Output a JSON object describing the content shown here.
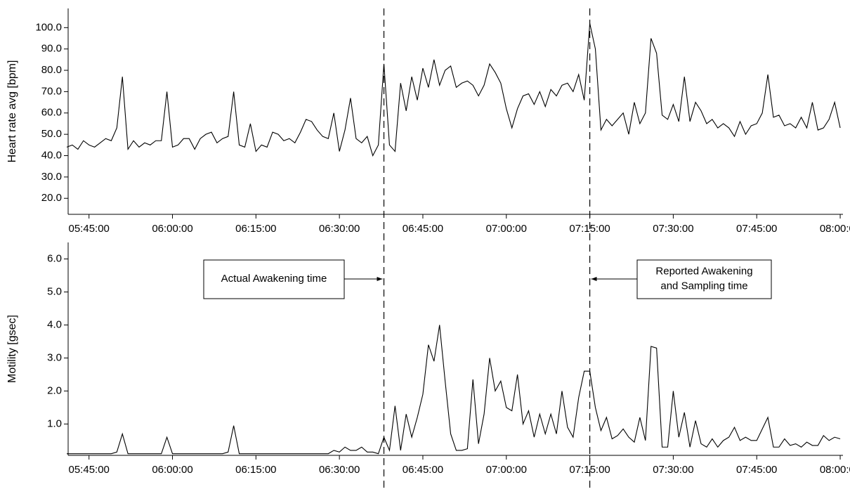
{
  "chart_data": [
    {
      "type": "line",
      "ylabel": "Heart rate avg [bpm]",
      "color": "#000000",
      "x": [
        "05:41:00",
        "05:42:00",
        "05:43:00",
        "05:44:00",
        "05:45:00",
        "05:46:00",
        "05:47:00",
        "05:48:00",
        "05:49:00",
        "05:50:00",
        "05:51:00",
        "05:52:00",
        "05:53:00",
        "05:54:00",
        "05:55:00",
        "05:56:00",
        "05:57:00",
        "05:58:00",
        "05:59:00",
        "06:00:00",
        "06:01:00",
        "06:02:00",
        "06:03:00",
        "06:04:00",
        "06:05:00",
        "06:06:00",
        "06:07:00",
        "06:08:00",
        "06:09:00",
        "06:10:00",
        "06:11:00",
        "06:12:00",
        "06:13:00",
        "06:14:00",
        "06:15:00",
        "06:16:00",
        "06:17:00",
        "06:18:00",
        "06:19:00",
        "06:20:00",
        "06:21:00",
        "06:22:00",
        "06:23:00",
        "06:24:00",
        "06:25:00",
        "06:26:00",
        "06:27:00",
        "06:28:00",
        "06:29:00",
        "06:30:00",
        "06:31:00",
        "06:32:00",
        "06:33:00",
        "06:34:00",
        "06:35:00",
        "06:36:00",
        "06:37:00",
        "06:38:00",
        "06:39:00",
        "06:40:00",
        "06:41:00",
        "06:42:00",
        "06:43:00",
        "06:44:00",
        "06:45:00",
        "06:46:00",
        "06:47:00",
        "06:48:00",
        "06:49:00",
        "06:50:00",
        "06:51:00",
        "06:52:00",
        "06:53:00",
        "06:54:00",
        "06:55:00",
        "06:56:00",
        "06:57:00",
        "06:58:00",
        "06:59:00",
        "07:00:00",
        "07:01:00",
        "07:02:00",
        "07:03:00",
        "07:04:00",
        "07:05:00",
        "07:06:00",
        "07:07:00",
        "07:08:00",
        "07:09:00",
        "07:10:00",
        "07:11:00",
        "07:12:00",
        "07:13:00",
        "07:14:00",
        "07:15:00",
        "07:16:00",
        "07:17:00",
        "07:18:00",
        "07:19:00",
        "07:20:00",
        "07:21:00",
        "07:22:00",
        "07:23:00",
        "07:24:00",
        "07:25:00",
        "07:26:00",
        "07:27:00",
        "07:28:00",
        "07:29:00",
        "07:30:00",
        "07:31:00",
        "07:32:00",
        "07:33:00",
        "07:34:00",
        "07:35:00",
        "07:36:00",
        "07:37:00",
        "07:38:00",
        "07:39:00",
        "07:40:00",
        "07:41:00",
        "07:42:00",
        "07:43:00",
        "07:44:00",
        "07:45:00",
        "07:46:00",
        "07:47:00",
        "07:48:00",
        "07:49:00",
        "07:50:00",
        "07:51:00",
        "07:52:00",
        "07:53:00",
        "07:54:00",
        "07:55:00",
        "07:56:00",
        "07:57:00",
        "07:58:00",
        "07:59:00",
        "08:00:00"
      ],
      "values": [
        44,
        45,
        43,
        47,
        45,
        44,
        46,
        48,
        47,
        53,
        77,
        43,
        47,
        44,
        46,
        45,
        47,
        47,
        70,
        44,
        45,
        48,
        48,
        43,
        48,
        50,
        51,
        46,
        48,
        49,
        70,
        45,
        44,
        55,
        42,
        45,
        44,
        51,
        50,
        47,
        48,
        46,
        51,
        57,
        56,
        52,
        49,
        48,
        60,
        42,
        52,
        67,
        48,
        46,
        49,
        40,
        45,
        83,
        45,
        42,
        74,
        61,
        77,
        66,
        81,
        72,
        85,
        73,
        80,
        82,
        72,
        74,
        75,
        73,
        68,
        73,
        83,
        79,
        74,
        62,
        53,
        62,
        68,
        69,
        64,
        70,
        63,
        71,
        68,
        73,
        74,
        70,
        78,
        66,
        102,
        90,
        52,
        57,
        54,
        57,
        60,
        50,
        65,
        55,
        60,
        95,
        88,
        59,
        57,
        64,
        56,
        77,
        56,
        65,
        61,
        55,
        57,
        53,
        55,
        53,
        49,
        56,
        50,
        54,
        55,
        60,
        78,
        58,
        59,
        54,
        55,
        53,
        58,
        53,
        65,
        52,
        53,
        57,
        65,
        53
      ],
      "xlim": [
        "05:41:15",
        "08:00:30"
      ],
      "xticks": [
        "05:45:00",
        "06:00:00",
        "06:15:00",
        "06:30:00",
        "06:45:00",
        "07:00:00",
        "07:15:00",
        "07:30:00",
        "07:45:00",
        "08:00:00"
      ],
      "ylim": [
        12.5,
        109
      ],
      "yticks": [
        {
          "value": 20,
          "label": "20.0"
        },
        {
          "value": 30,
          "label": "30.0"
        },
        {
          "value": 40,
          "label": "40.0"
        },
        {
          "value": 50,
          "label": "50.0"
        },
        {
          "value": 60,
          "label": "60.0"
        },
        {
          "value": 70,
          "label": "70.0"
        },
        {
          "value": 80,
          "label": "80.0"
        },
        {
          "value": 90,
          "label": "90.0"
        },
        {
          "value": 100,
          "label": "100.0"
        }
      ]
    },
    {
      "type": "line",
      "ylabel": "Motility [gsec]",
      "color": "#000000",
      "x": [
        "05:41:00",
        "05:42:00",
        "05:43:00",
        "05:44:00",
        "05:45:00",
        "05:46:00",
        "05:47:00",
        "05:48:00",
        "05:49:00",
        "05:50:00",
        "05:51:00",
        "05:52:00",
        "05:53:00",
        "05:54:00",
        "05:55:00",
        "05:56:00",
        "05:57:00",
        "05:58:00",
        "05:59:00",
        "06:00:00",
        "06:01:00",
        "06:02:00",
        "06:03:00",
        "06:04:00",
        "06:05:00",
        "06:06:00",
        "06:07:00",
        "06:08:00",
        "06:09:00",
        "06:10:00",
        "06:11:00",
        "06:12:00",
        "06:13:00",
        "06:14:00",
        "06:15:00",
        "06:16:00",
        "06:17:00",
        "06:18:00",
        "06:19:00",
        "06:20:00",
        "06:21:00",
        "06:22:00",
        "06:23:00",
        "06:24:00",
        "06:25:00",
        "06:26:00",
        "06:27:00",
        "06:28:00",
        "06:29:00",
        "06:30:00",
        "06:31:00",
        "06:32:00",
        "06:33:00",
        "06:34:00",
        "06:35:00",
        "06:36:00",
        "06:37:00",
        "06:38:00",
        "06:39:00",
        "06:40:00",
        "06:41:00",
        "06:42:00",
        "06:43:00",
        "06:44:00",
        "06:45:00",
        "06:46:00",
        "06:47:00",
        "06:48:00",
        "06:49:00",
        "06:50:00",
        "06:51:00",
        "06:52:00",
        "06:53:00",
        "06:54:00",
        "06:55:00",
        "06:56:00",
        "06:57:00",
        "06:58:00",
        "06:59:00",
        "07:00:00",
        "07:01:00",
        "07:02:00",
        "07:03:00",
        "07:04:00",
        "07:05:00",
        "07:06:00",
        "07:07:00",
        "07:08:00",
        "07:09:00",
        "07:10:00",
        "07:11:00",
        "07:12:00",
        "07:13:00",
        "07:14:00",
        "07:15:00",
        "07:16:00",
        "07:17:00",
        "07:18:00",
        "07:19:00",
        "07:20:00",
        "07:21:00",
        "07:22:00",
        "07:23:00",
        "07:24:00",
        "07:25:00",
        "07:26:00",
        "07:27:00",
        "07:28:00",
        "07:29:00",
        "07:30:00",
        "07:31:00",
        "07:32:00",
        "07:33:00",
        "07:34:00",
        "07:35:00",
        "07:36:00",
        "07:37:00",
        "07:38:00",
        "07:39:00",
        "07:40:00",
        "07:41:00",
        "07:42:00",
        "07:43:00",
        "07:44:00",
        "07:45:00",
        "07:46:00",
        "07:47:00",
        "07:48:00",
        "07:49:00",
        "07:50:00",
        "07:51:00",
        "07:52:00",
        "07:53:00",
        "07:54:00",
        "07:55:00",
        "07:56:00",
        "07:57:00",
        "07:58:00",
        "07:59:00",
        "08:00:00"
      ],
      "values": [
        0.1,
        0.1,
        0.1,
        0.1,
        0.1,
        0.1,
        0.1,
        0.1,
        0.1,
        0.15,
        0.7,
        0.1,
        0.1,
        0.1,
        0.1,
        0.1,
        0.1,
        0.1,
        0.6,
        0.1,
        0.1,
        0.1,
        0.1,
        0.1,
        0.1,
        0.1,
        0.1,
        0.1,
        0.1,
        0.15,
        0.95,
        0.1,
        0.1,
        0.1,
        0.1,
        0.1,
        0.1,
        0.1,
        0.1,
        0.1,
        0.1,
        0.1,
        0.1,
        0.1,
        0.1,
        0.1,
        0.1,
        0.1,
        0.2,
        0.15,
        0.3,
        0.2,
        0.2,
        0.3,
        0.15,
        0.15,
        0.1,
        0.6,
        0.2,
        1.55,
        0.2,
        1.3,
        0.6,
        1.2,
        1.9,
        3.4,
        2.9,
        4.0,
        2.3,
        0.7,
        0.2,
        0.2,
        0.25,
        2.35,
        0.4,
        1.3,
        3.0,
        2.0,
        2.3,
        1.5,
        1.4,
        2.5,
        1.0,
        1.4,
        0.6,
        1.3,
        0.7,
        1.3,
        0.7,
        2.0,
        0.9,
        0.6,
        1.8,
        2.6,
        2.6,
        1.5,
        0.8,
        1.2,
        0.55,
        0.65,
        0.85,
        0.6,
        0.45,
        1.2,
        0.5,
        3.35,
        3.3,
        0.3,
        0.3,
        2.0,
        0.6,
        1.35,
        0.3,
        1.1,
        0.4,
        0.3,
        0.55,
        0.3,
        0.5,
        0.6,
        0.9,
        0.5,
        0.6,
        0.5,
        0.5,
        0.85,
        1.2,
        0.3,
        0.3,
        0.55,
        0.35,
        0.4,
        0.3,
        0.45,
        0.35,
        0.35,
        0.65,
        0.5,
        0.6,
        0.55
      ],
      "xlim": [
        "05:41:15",
        "08:00:30"
      ],
      "xticks": [
        "05:45:00",
        "06:00:00",
        "06:15:00",
        "06:30:00",
        "06:45:00",
        "07:00:00",
        "07:15:00",
        "07:30:00",
        "07:45:00",
        "08:00:00"
      ],
      "ylim": [
        0.05,
        6.5
      ],
      "yticks": [
        {
          "value": 1,
          "label": "1.0"
        },
        {
          "value": 2,
          "label": "2.0"
        },
        {
          "value": 3,
          "label": "3.0"
        },
        {
          "value": 4,
          "label": "4.0"
        },
        {
          "value": 5,
          "label": "5.0"
        },
        {
          "value": 6,
          "label": "6.0"
        }
      ],
      "vlines": [
        "06:38:00",
        "07:15:00"
      ],
      "annotations": [
        {
          "text": [
            "Actual Awakening time"
          ],
          "target": "06:38:00"
        },
        {
          "text": [
            "Reported Awakening",
            "and Sampling time"
          ],
          "target": "07:15:00"
        }
      ]
    }
  ]
}
